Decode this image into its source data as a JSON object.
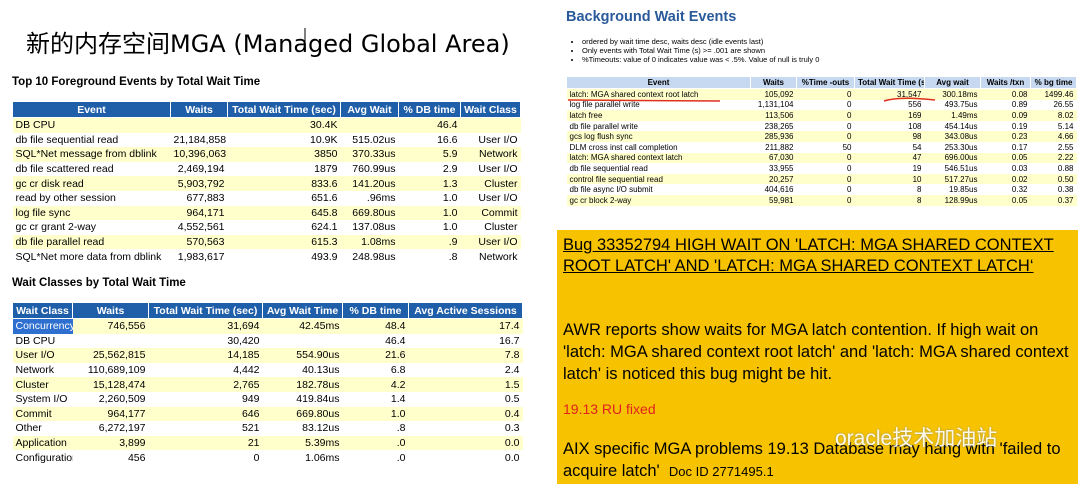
{
  "title": "新的内存空间MGA (Managed Global Area)",
  "foreground": {
    "heading": "Top 10 Foreground Events by Total Wait Time",
    "columns": [
      "Event",
      "Waits",
      "Total Wait Time (sec)",
      "Avg Wait",
      "% DB time",
      "Wait Class"
    ],
    "rows": [
      [
        "DB CPU",
        null,
        "30.4K",
        null,
        "46.4",
        null
      ],
      [
        "db file sequential read",
        "21,184,858",
        "10.9K",
        "515.02us",
        "16.6",
        "User I/O"
      ],
      [
        "SQL*Net message from dblink",
        "10,396,063",
        "3850",
        "370.33us",
        "5.9",
        "Network"
      ],
      [
        "db file scattered read",
        "2,469,194",
        "1879",
        "760.99us",
        "2.9",
        "User I/O"
      ],
      [
        "gc cr disk read",
        "5,903,792",
        "833.6",
        "141.20us",
        "1.3",
        "Cluster"
      ],
      [
        "read by other session",
        "677,883",
        "651.6",
        ".96ms",
        "1.0",
        "User I/O"
      ],
      [
        "log file sync",
        "964,171",
        "645.8",
        "669.80us",
        "1.0",
        "Commit"
      ],
      [
        "gc cr grant 2-way",
        "4,552,561",
        "624.1",
        "137.08us",
        "1.0",
        "Cluster"
      ],
      [
        "db file parallel read",
        "570,563",
        "615.3",
        "1.08ms",
        ".9",
        "User I/O"
      ],
      [
        "SQL*Net more data from dblink",
        "1,983,617",
        "493.9",
        "248.98us",
        ".8",
        "Network"
      ]
    ]
  },
  "wait_classes": {
    "heading": "Wait Classes by Total Wait Time",
    "columns": [
      "Wait Class",
      "Waits",
      "Total Wait Time (sec)",
      "Avg Wait Time",
      "% DB time",
      "Avg Active Sessions"
    ],
    "rows": [
      [
        "Concurrency",
        "746,556",
        "31,694",
        "42.45ms",
        "48.4",
        "17.4"
      ],
      [
        "DB CPU",
        null,
        "30,420",
        null,
        "46.4",
        "16.7"
      ],
      [
        "User I/O",
        "25,562,815",
        "14,185",
        "554.90us",
        "21.6",
        "7.8"
      ],
      [
        "Network",
        "110,689,109",
        "4,442",
        "40.13us",
        "6.8",
        "2.4"
      ],
      [
        "Cluster",
        "15,128,474",
        "2,765",
        "182.78us",
        "4.2",
        "1.5"
      ],
      [
        "System I/O",
        "2,260,509",
        "949",
        "419.84us",
        "1.4",
        "0.5"
      ],
      [
        "Commit",
        "964,177",
        "646",
        "669.80us",
        "1.0",
        "0.4"
      ],
      [
        "Other",
        "6,272,197",
        "521",
        "83.12us",
        ".8",
        "0.3"
      ],
      [
        "Application",
        "3,899",
        "21",
        "5.39ms",
        ".0",
        "0.0"
      ],
      [
        "Configuration",
        "456",
        "0",
        "1.06ms",
        ".0",
        "0.0"
      ]
    ]
  },
  "background": {
    "heading": "Background Wait Events",
    "notes": [
      "ordered by wait time desc, waits desc (idle events last)",
      "Only events with Total Wait Time (s) >= .001 are shown",
      "%Timeouts: value of 0 indicates value was < .5%. Value of null is truly 0"
    ],
    "columns": [
      "Event",
      "Waits",
      "%Time -outs",
      "Total Wait Time (s)",
      "Avg wait",
      "Waits /txn",
      "% bg time"
    ],
    "rows": [
      [
        "latch: MGA shared context root latch",
        "105,092",
        "0",
        "31,547",
        "300.18ms",
        "0.08",
        "1499.46"
      ],
      [
        "log file parallel write",
        "1,131,104",
        "0",
        "556",
        "493.75us",
        "0.89",
        "26.55"
      ],
      [
        "latch free",
        "113,506",
        "0",
        "169",
        "1.49ms",
        "0.09",
        "8.02"
      ],
      [
        "db file parallel write",
        "238,265",
        "0",
        "108",
        "454.14us",
        "0.19",
        "5.14"
      ],
      [
        "gcs log flush sync",
        "285,936",
        "0",
        "98",
        "343.08us",
        "0.23",
        "4.66"
      ],
      [
        "DLM cross inst call completion",
        "211,882",
        "50",
        "54",
        "253.30us",
        "0.17",
        "2.55"
      ],
      [
        "latch: MGA shared context latch",
        "67,030",
        "0",
        "47",
        "696.00us",
        "0.05",
        "2.22"
      ],
      [
        "db file sequential read",
        "33,955",
        "0",
        "19",
        "546.51us",
        "0.03",
        "0.88"
      ],
      [
        "control file sequential read",
        "20,257",
        "0",
        "10",
        "517.27us",
        "0.02",
        "0.50"
      ],
      [
        "db file async I/O submit",
        "404,616",
        "0",
        "8",
        "19.85us",
        "0.32",
        "0.38"
      ],
      [
        "gc cr block 2-way",
        "59,981",
        "0",
        "8",
        "128.99us",
        "0.05",
        "0.37"
      ]
    ]
  },
  "note": {
    "bug_title": "Bug 33352794  HIGH WAIT ON 'LATCH: MGA SHARED CONTEXT ROOT LATCH' AND 'LATCH: MGA SHARED CONTEXT LATCH‘",
    "body": "AWR reports show waits for MGA latch contention. If high wait on 'latch: MGA shared context root latch' and 'latch: MGA shared context latch' is noticed this bug might be hit.",
    "fix": "19.13 RU fixed",
    "aix": "AIX specific MGA problems 19.13 Database may hang with 'failed to acquire latch'",
    "doc_id": "Doc ID 2771495.1"
  },
  "watermark": "oracle技术加油站"
}
